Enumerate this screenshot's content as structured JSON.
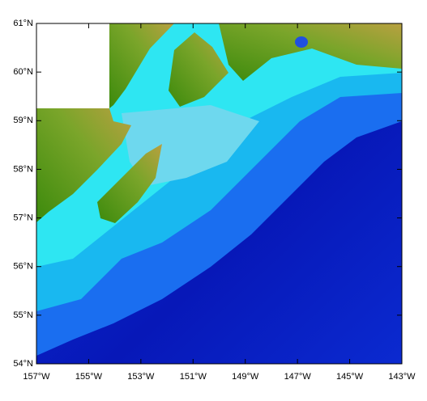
{
  "chart_data": {
    "type": "map",
    "xlim": [
      -157,
      -143
    ],
    "ylim": [
      54,
      61
    ],
    "xticks": [
      {
        "value": -157,
        "label": "157°W"
      },
      {
        "value": -155,
        "label": "155°W"
      },
      {
        "value": -153,
        "label": "153°W"
      },
      {
        "value": -151,
        "label": "151°W"
      },
      {
        "value": -149,
        "label": "149°W"
      },
      {
        "value": -147,
        "label": "147°W"
      },
      {
        "value": -145,
        "label": "145°W"
      },
      {
        "value": -143,
        "label": "143°W"
      }
    ],
    "yticks": [
      {
        "value": 54,
        "label": "54°N"
      },
      {
        "value": 55,
        "label": "55°N"
      },
      {
        "value": 56,
        "label": "56°N"
      },
      {
        "value": 57,
        "label": "57°N"
      },
      {
        "value": 58,
        "label": "58°N"
      },
      {
        "value": 59,
        "label": "59°N"
      },
      {
        "value": 60,
        "label": "60°N"
      },
      {
        "value": 61,
        "label": "61°N"
      }
    ]
  }
}
